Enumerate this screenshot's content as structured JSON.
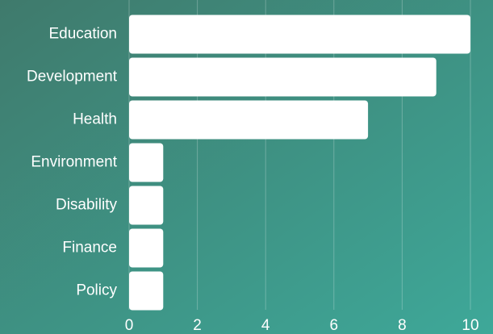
{
  "chart_data": {
    "type": "bar",
    "orientation": "horizontal",
    "categories": [
      "Education",
      "Development",
      "Health",
      "Environment",
      "Disability",
      "Finance",
      "Policy"
    ],
    "values": [
      10,
      9,
      7,
      1,
      1,
      1,
      1
    ],
    "color": "#ffffff",
    "xlim": [
      0,
      10
    ],
    "xticks": [
      0,
      2,
      4,
      6,
      8,
      10
    ],
    "grid": true
  }
}
